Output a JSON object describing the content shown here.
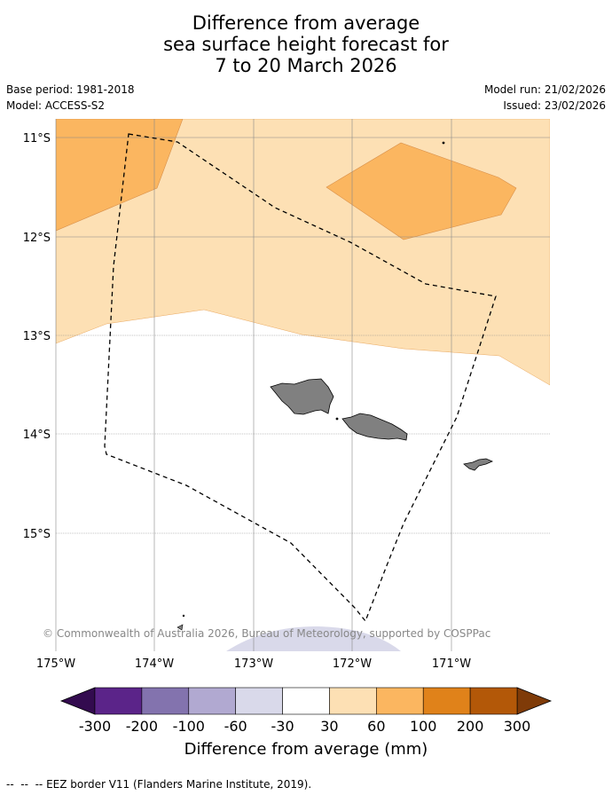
{
  "title": {
    "line1": "Difference from average",
    "line2": "sea surface height forecast for",
    "line3": "7 to 20 March 2026"
  },
  "meta": {
    "base_period": "Base period: 1981-2018",
    "model": "Model: ACCESS-S2",
    "model_run": "Model run: 21/02/2026",
    "issued": "Issued: 23/02/2026"
  },
  "map": {
    "lat_labels": [
      "11°S",
      "12°S",
      "13°S",
      "14°S",
      "15°S"
    ],
    "lon_labels": [
      "175°W",
      "174°W",
      "173°W",
      "172°W",
      "171°W"
    ],
    "copyright": "© Commonwealth of Australia 2026, Bureau of Meteorology, supported by COSPPac"
  },
  "colorbar": {
    "label": "Difference from average (mm)",
    "ticks": [
      "-300",
      "-200",
      "-100",
      "-60",
      "-30",
      "30",
      "60",
      "100",
      "200",
      "300"
    ],
    "colors": [
      "#5b2489",
      "#8373ae",
      "#b1a9d1",
      "#d9d9ea",
      "#ffffff",
      "#fde0b4",
      "#fbb660",
      "#e0821a",
      "#b35808"
    ],
    "under_color": "#330b4f",
    "over_color": "#7f3b08"
  },
  "footer": {
    "legend_symbol": "--  --  --",
    "legend_text": "EEZ border V11 (Flanders Marine Institute, 2019)."
  }
}
